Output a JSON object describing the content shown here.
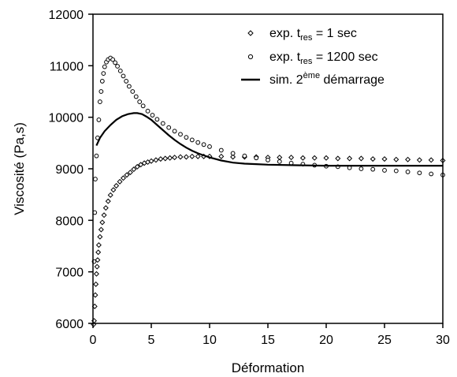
{
  "chart_data": {
    "type": "scatter",
    "xlabel": "Déformation",
    "ylabel": "Viscosité (Pa,s)",
    "xlim": [
      0,
      30
    ],
    "ylim": [
      6000,
      12000
    ],
    "xticks": [
      "0",
      "5",
      "10",
      "15",
      "20",
      "25",
      "30"
    ],
    "yticks": [
      "6000",
      "7000",
      "8000",
      "9000",
      "10000",
      "11000",
      "12000"
    ],
    "grid": false,
    "legend_position": "top-right",
    "legend": [
      {
        "marker": "diamond",
        "pre": "exp. t",
        "sub": "res",
        "post": " = 1 sec"
      },
      {
        "marker": "circle",
        "pre": "exp. t",
        "sub": "res",
        "post": " = 1200 sec"
      },
      {
        "marker": "line",
        "pre": "sim. 2",
        "sup": "ème",
        "post": " démarrage"
      }
    ],
    "series": [
      {
        "marker": "diamond",
        "x": [
          0.05,
          0.1,
          0.15,
          0.2,
          0.25,
          0.3,
          0.35,
          0.4,
          0.45,
          0.5,
          0.6,
          0.7,
          0.8,
          0.95,
          1.1,
          1.3,
          1.5,
          1.75,
          2.0,
          2.3,
          2.6,
          2.9,
          3.2,
          3.5,
          3.8,
          4.1,
          4.4,
          4.7,
          5.0,
          5.4,
          5.8,
          6.2,
          6.6,
          7.0,
          7.5,
          8.0,
          8.5,
          9.0,
          9.5,
          10,
          11,
          12,
          13,
          14,
          15,
          16,
          17,
          18,
          19,
          20,
          21,
          22,
          23,
          24,
          25,
          26,
          27,
          28,
          29,
          30
        ],
        "y": [
          5980,
          6050,
          6330,
          6550,
          6760,
          6960,
          7100,
          7230,
          7380,
          7520,
          7680,
          7820,
          7960,
          8100,
          8240,
          8370,
          8490,
          8590,
          8670,
          8750,
          8820,
          8880,
          8930,
          8990,
          9040,
          9080,
          9110,
          9130,
          9150,
          9170,
          9190,
          9200,
          9210,
          9220,
          9230,
          9230,
          9240,
          9240,
          9240,
          9240,
          9240,
          9230,
          9230,
          9230,
          9220,
          9220,
          9220,
          9210,
          9210,
          9210,
          9200,
          9200,
          9200,
          9190,
          9190,
          9180,
          9180,
          9170,
          9170,
          9160
        ]
      },
      {
        "marker": "circle",
        "x": [
          0.1,
          0.15,
          0.2,
          0.3,
          0.4,
          0.5,
          0.6,
          0.7,
          0.8,
          0.9,
          1.0,
          1.15,
          1.3,
          1.5,
          1.7,
          1.9,
          2.1,
          2.35,
          2.6,
          2.85,
          3.1,
          3.4,
          3.7,
          4.0,
          4.3,
          4.7,
          5.1,
          5.5,
          6.0,
          6.5,
          7.0,
          7.5,
          8.0,
          8.5,
          9.0,
          9.5,
          10,
          11,
          12,
          13,
          14,
          15,
          16,
          17,
          18,
          19,
          20,
          21,
          22,
          23,
          24,
          25,
          26,
          27,
          28,
          29,
          30
        ],
        "y": [
          7200,
          8150,
          8800,
          9250,
          9600,
          9950,
          10300,
          10500,
          10700,
          10850,
          10980,
          11070,
          11120,
          11150,
          11120,
          11060,
          10990,
          10900,
          10800,
          10700,
          10600,
          10500,
          10400,
          10300,
          10220,
          10120,
          10040,
          9960,
          9880,
          9800,
          9730,
          9670,
          9610,
          9560,
          9510,
          9470,
          9430,
          9360,
          9300,
          9250,
          9210,
          9170,
          9140,
          9110,
          9090,
          9070,
          9050,
          9040,
          9020,
          9000,
          8990,
          8970,
          8960,
          8940,
          8920,
          8900,
          8880
        ]
      },
      {
        "marker": "line",
        "x": [
          0.3,
          0.6,
          1.0,
          1.5,
          2.0,
          2.5,
          3.0,
          3.5,
          3.8,
          4.2,
          4.6,
          5.0,
          5.5,
          6.0,
          6.5,
          7.0,
          7.5,
          8.0,
          8.5,
          9.0,
          9.5,
          10,
          11,
          12,
          13,
          14,
          15,
          17,
          20,
          23,
          26,
          30
        ],
        "y": [
          9450,
          9600,
          9730,
          9850,
          9950,
          10020,
          10060,
          10080,
          10080,
          10060,
          10010,
          9950,
          9850,
          9750,
          9650,
          9560,
          9480,
          9410,
          9350,
          9300,
          9260,
          9220,
          9160,
          9120,
          9100,
          9090,
          9080,
          9070,
          9060,
          9060,
          9060,
          9060
        ]
      }
    ]
  }
}
